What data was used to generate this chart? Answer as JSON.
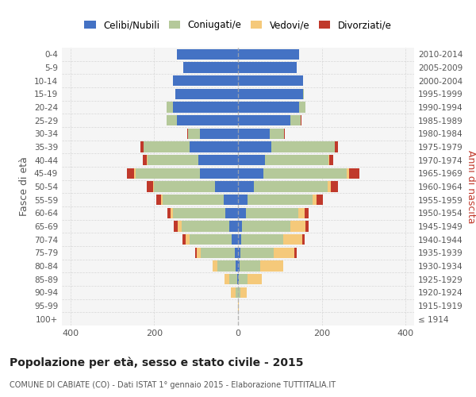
{
  "age_groups": [
    "100+",
    "95-99",
    "90-94",
    "85-89",
    "80-84",
    "75-79",
    "70-74",
    "65-69",
    "60-64",
    "55-59",
    "50-54",
    "45-49",
    "40-44",
    "35-39",
    "30-34",
    "25-29",
    "20-24",
    "15-19",
    "10-14",
    "5-9",
    "0-4"
  ],
  "birth_years": [
    "≤ 1914",
    "1915-1919",
    "1920-1924",
    "1925-1929",
    "1930-1934",
    "1935-1939",
    "1940-1944",
    "1945-1949",
    "1950-1954",
    "1955-1959",
    "1960-1964",
    "1965-1969",
    "1970-1974",
    "1975-1979",
    "1980-1984",
    "1985-1989",
    "1990-1994",
    "1995-1999",
    "2000-2004",
    "2005-2009",
    "2010-2014"
  ],
  "males": {
    "celibi": [
      0,
      0,
      0,
      2,
      5,
      8,
      15,
      20,
      30,
      35,
      55,
      90,
      95,
      115,
      90,
      145,
      155,
      150,
      155,
      130,
      145
    ],
    "coniugati": [
      0,
      0,
      5,
      18,
      45,
      80,
      100,
      115,
      125,
      145,
      145,
      155,
      120,
      110,
      30,
      25,
      15,
      0,
      0,
      0,
      0
    ],
    "vedovi": [
      0,
      0,
      12,
      12,
      10,
      10,
      10,
      8,
      5,
      3,
      2,
      2,
      2,
      0,
      0,
      0,
      0,
      0,
      0,
      0,
      0
    ],
    "divorziati": [
      0,
      0,
      0,
      0,
      0,
      5,
      8,
      10,
      8,
      12,
      15,
      18,
      10,
      8,
      2,
      0,
      0,
      0,
      0,
      0,
      0
    ]
  },
  "females": {
    "nubili": [
      0,
      0,
      0,
      2,
      3,
      5,
      8,
      10,
      18,
      22,
      38,
      60,
      65,
      80,
      75,
      125,
      145,
      155,
      155,
      140,
      145
    ],
    "coniugate": [
      0,
      0,
      5,
      20,
      50,
      80,
      100,
      115,
      125,
      155,
      175,
      200,
      150,
      150,
      35,
      25,
      15,
      2,
      0,
      0,
      0
    ],
    "vedove": [
      0,
      2,
      15,
      35,
      55,
      50,
      45,
      35,
      15,
      10,
      8,
      5,
      2,
      0,
      0,
      0,
      0,
      0,
      0,
      0,
      0
    ],
    "divorziate": [
      0,
      0,
      0,
      0,
      0,
      5,
      5,
      8,
      10,
      15,
      18,
      25,
      10,
      8,
      2,
      2,
      0,
      0,
      0,
      0,
      0
    ]
  },
  "colors": {
    "celibi_nubili": "#4472c4",
    "coniugati_e": "#b5c99a",
    "vedovi_e": "#f5c97a",
    "divorziati_e": "#c0392b"
  },
  "title": "Popolazione per età, sesso e stato civile - 2015",
  "subtitle": "COMUNE DI CABIATE (CO) - Dati ISTAT 1° gennaio 2015 - Elaborazione TUTTITALIA.IT",
  "ylabel_left": "Fasce di età",
  "ylabel_right": "Anni di nascita",
  "xlim": 420,
  "legend_labels": [
    "Celibi/Nubili",
    "Coniugati/e",
    "Vedovi/e",
    "Divorziati/e"
  ],
  "background_color": "#ffffff",
  "grid_color": "#cccccc"
}
